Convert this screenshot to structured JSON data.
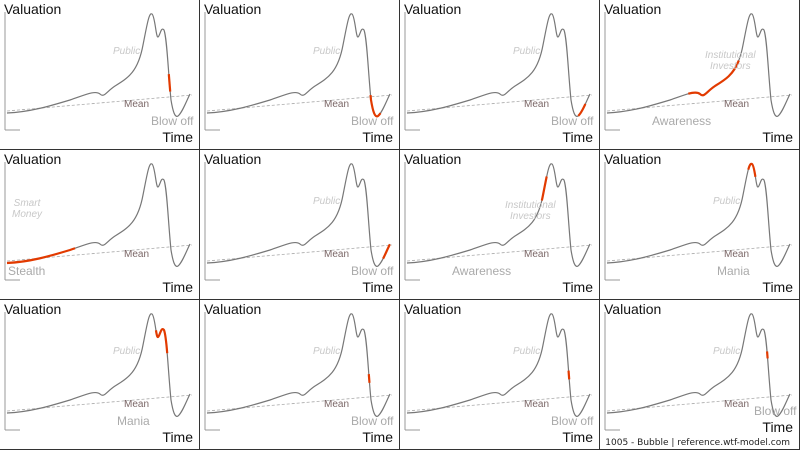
{
  "chart_data": {
    "type": "line",
    "ylabel": "Valuation",
    "xlabel": "Time",
    "mean_label": "Mean",
    "colors": {
      "curve": "#777777",
      "highlight": "#e23a00",
      "mean": "#aaaaaa"
    },
    "panels": [
      {
        "mid": "Public",
        "phase": "Blow off",
        "highlight": [
          0.8,
          0.85
        ]
      },
      {
        "mid": "Public",
        "phase": "Blow off",
        "highlight": [
          0.86,
          0.94
        ]
      },
      {
        "mid": "Public",
        "phase": "Blow off",
        "highlight": [
          0.93,
          0.97
        ]
      },
      {
        "mid": "Institutional\nInvestors",
        "phase": "Awareness",
        "highlight": [
          0.24,
          0.43
        ]
      },
      {
        "mid": "Smart\nMoney",
        "phase": "Stealth",
        "highlight": [
          0.0,
          0.2
        ]
      },
      {
        "mid": "Public",
        "phase": "Blow off",
        "highlight": [
          0.955,
          1.0
        ]
      },
      {
        "mid": "Institutional\nInvestors",
        "phase": "Awareness",
        "highlight": [
          0.46,
          0.53
        ]
      },
      {
        "mid": "Public",
        "phase": "Mania",
        "highlight": [
          0.55,
          0.61
        ]
      },
      {
        "mid": "Public",
        "phase": "Mania",
        "highlight": [
          0.62,
          0.74
        ]
      },
      {
        "mid": "Public",
        "phase": "Blow off",
        "highlight": [
          0.8,
          0.825
        ]
      },
      {
        "mid": "Public",
        "phase": "Blow off",
        "highlight": [
          0.79,
          0.815
        ]
      },
      {
        "mid": "Public",
        "phase": "Blow off",
        "highlight": [
          0.735,
          0.755
        ]
      }
    ]
  },
  "footer": "1005 - Bubble | reference.wtf-model.com"
}
